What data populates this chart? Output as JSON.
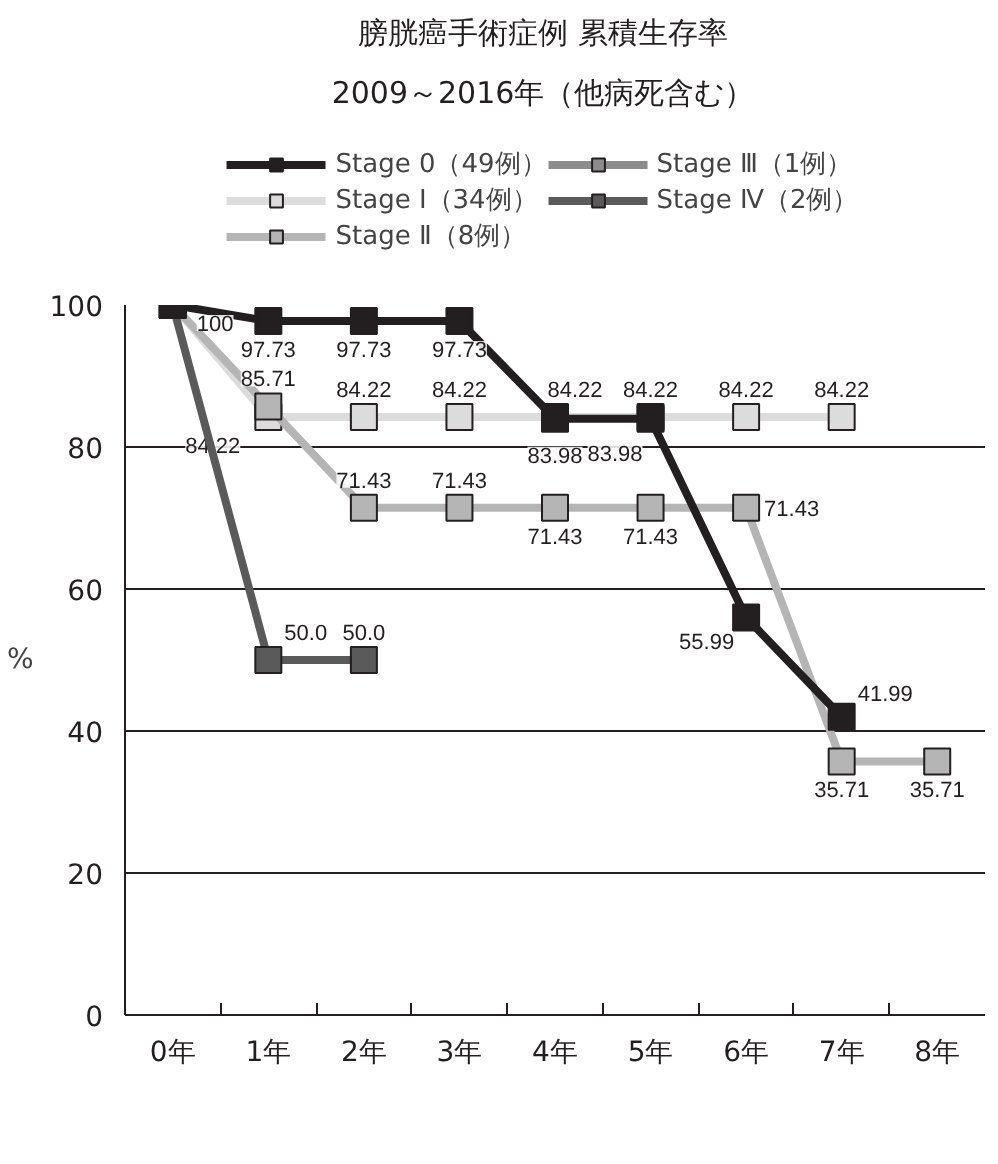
{
  "chart_data": {
    "type": "line",
    "title": "膀胱癌手術症例 累積生存率",
    "subtitle": "2009～2016年（他病死含む）",
    "ylabel": "%",
    "categories": [
      "0年",
      "1年",
      "2年",
      "3年",
      "4年",
      "5年",
      "6年",
      "7年",
      "8年"
    ],
    "ylim": [
      0,
      100
    ],
    "yticks": [
      0,
      20,
      40,
      60,
      80,
      100
    ],
    "grid": "y",
    "legend": "top",
    "marker": "square",
    "line_style": "solid",
    "series": [
      {
        "name": "Stage 0（49例）",
        "color": "#231f20",
        "values": [
          100,
          97.73,
          97.73,
          97.73,
          83.98,
          83.98,
          55.99,
          41.99,
          null
        ],
        "value_labels": [
          "100",
          "97.73",
          "97.73",
          "97.73",
          "83.98",
          "83.98",
          "55.99",
          "41.99",
          null
        ]
      },
      {
        "name": "Stage Ⅰ（34例）",
        "color": "#dcdcdc",
        "values": [
          100,
          84.22,
          84.22,
          84.22,
          84.22,
          84.22,
          84.22,
          84.22,
          null
        ],
        "value_labels": [
          null,
          "84.22",
          "84.22",
          "84.22",
          "84.22",
          "84.22",
          "84.22",
          "84.22",
          null
        ]
      },
      {
        "name": "Stage Ⅱ（8例）",
        "color": "#b5b5b5",
        "values": [
          100,
          85.71,
          71.43,
          71.43,
          71.43,
          71.43,
          71.43,
          35.71,
          35.71
        ],
        "value_labels": [
          null,
          "85.71",
          "71.43",
          "71.43",
          "71.43",
          "71.43",
          "71.43",
          "35.71",
          "35.71"
        ]
      },
      {
        "name": "Stage Ⅲ（1例）",
        "color": "#8c8c8c",
        "values": [
          null,
          null,
          null,
          null,
          null,
          null,
          null,
          null,
          null
        ]
      },
      {
        "name": "Stage Ⅳ（2例）",
        "color": "#5a5a5a",
        "values": [
          100,
          50.0,
          50.0,
          null,
          null,
          null,
          null,
          null,
          null
        ],
        "value_labels": [
          null,
          "50.0",
          "50.0",
          null,
          null,
          null,
          null,
          null,
          null
        ]
      }
    ]
  }
}
